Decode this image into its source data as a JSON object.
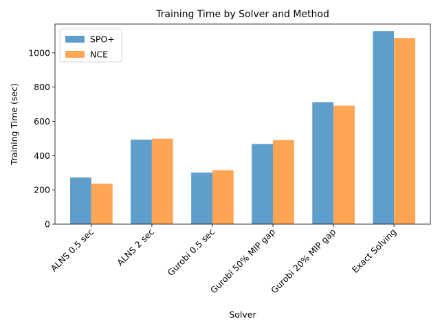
{
  "chart_data": {
    "type": "bar",
    "title": "Training Time by Solver and Method",
    "xlabel": "Solver",
    "ylabel": "Training Time (sec)",
    "categories": [
      "ALNS 0.5 sec",
      "ALNS 2 sec",
      "Gurobi 0.5 sec",
      "Gurobi 50% MIP gap",
      "Gurobi 20% MIP gap",
      "Exact Solving"
    ],
    "series": [
      {
        "name": "SPO+",
        "color": "#5f9ecb",
        "values": [
          272,
          493,
          301,
          468,
          712,
          1127
        ]
      },
      {
        "name": "NCE",
        "color": "#ffa556",
        "values": [
          236,
          499,
          315,
          491,
          692,
          1087
        ]
      }
    ],
    "ylim": [
      0,
      1168
    ],
    "yticks": [
      0,
      200,
      400,
      600,
      800,
      1000
    ],
    "grid": false,
    "legend_position": "top-left"
  }
}
